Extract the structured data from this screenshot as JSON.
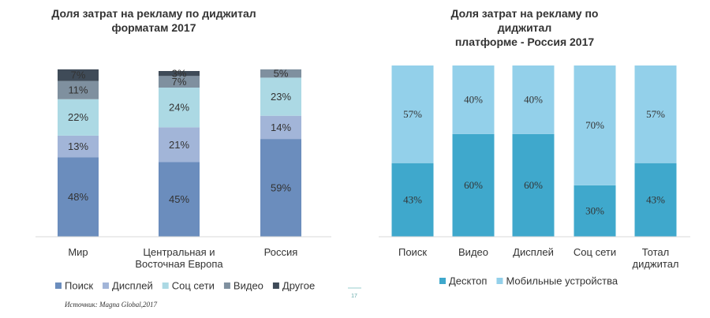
{
  "chart_data": [
    {
      "type": "stacked_bar",
      "title": "Доля затрат на рекламу по диджитал\nформатам 2017",
      "categories": [
        "Мир",
        "Центральная и\nВосточная Европа",
        "Россия"
      ],
      "ylim": [
        0,
        100
      ],
      "series": [
        {
          "name": "Поиск",
          "color": "#6b8dbd",
          "values": [
            48,
            45,
            59
          ],
          "value_labels": [
            "48%",
            "45%",
            "59%"
          ]
        },
        {
          "name": "Дисплей",
          "color": "#a2b5d8",
          "values": [
            13,
            21,
            14
          ],
          "value_labels": [
            "13%",
            "21%",
            "14%"
          ]
        },
        {
          "name": "Соц сети",
          "color": "#acd9e4",
          "values": [
            22,
            24,
            23
          ],
          "value_labels": [
            "22%",
            "24%",
            "23%"
          ]
        },
        {
          "name": "Видео",
          "color": "#7f909f",
          "values": [
            11,
            7,
            5
          ],
          "value_labels": [
            "11%",
            "7%",
            "5%"
          ]
        },
        {
          "name": "Другое",
          "color": "#3f4b58",
          "values": [
            7,
            3,
            null
          ],
          "value_labels": [
            "7%",
            "3%",
            null
          ]
        }
      ]
    },
    {
      "type": "stacked_bar",
      "title": "Доля затрат на рекламу по диджитал\nплатформе - Россия 2017",
      "categories": [
        "Поиск",
        "Видео",
        "Дисплей",
        "Соц сети",
        "Тотал\nдиджитал"
      ],
      "ylim": [
        0,
        100
      ],
      "series": [
        {
          "name": "Десктоп",
          "color": "#3fa8cc",
          "values": [
            43,
            60,
            60,
            30,
            43
          ],
          "value_labels": [
            "43%",
            "60%",
            "60%",
            "30%",
            "43%"
          ]
        },
        {
          "name": "Мобильные устройства",
          "color": "#93d0ea",
          "values": [
            57,
            40,
            40,
            70,
            57
          ],
          "value_labels": [
            "57%",
            "40%",
            "40%",
            "70%",
            "57%"
          ]
        }
      ]
    }
  ],
  "source": "Источник: Magna Global,2017",
  "page_number": "17"
}
